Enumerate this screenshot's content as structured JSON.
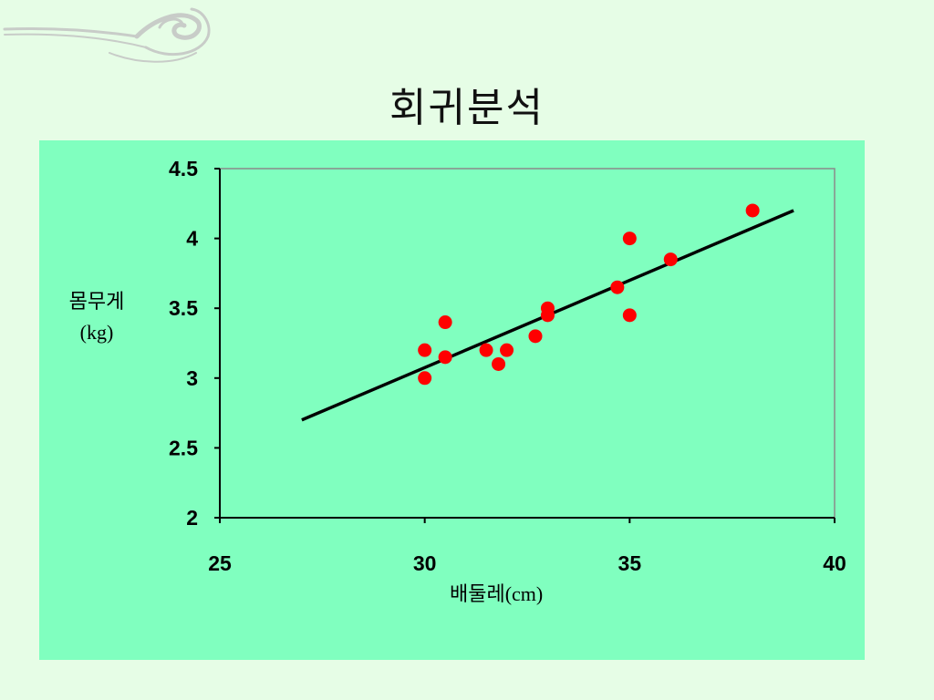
{
  "slide": {
    "title": "회귀분석"
  },
  "chart_data": {
    "type": "scatter",
    "xlabel": "배둘레(cm)",
    "ylabel": [
      "몸무게",
      "(kg)"
    ],
    "xlim": [
      25,
      40
    ],
    "ylim": [
      2,
      4.5
    ],
    "xticks": [
      "25",
      "30",
      "35",
      "40"
    ],
    "yticks": [
      "2",
      "2.5",
      "3",
      "3.5",
      "4",
      "4.5"
    ],
    "grid": false,
    "points": [
      {
        "x": 30.0,
        "y": 3.2
      },
      {
        "x": 30.0,
        "y": 3.0
      },
      {
        "x": 30.5,
        "y": 3.4
      },
      {
        "x": 30.5,
        "y": 3.15
      },
      {
        "x": 31.5,
        "y": 3.2
      },
      {
        "x": 31.8,
        "y": 3.1
      },
      {
        "x": 32.0,
        "y": 3.2
      },
      {
        "x": 32.7,
        "y": 3.3
      },
      {
        "x": 33.0,
        "y": 3.5
      },
      {
        "x": 33.0,
        "y": 3.45
      },
      {
        "x": 34.7,
        "y": 3.65
      },
      {
        "x": 35.0,
        "y": 4.0
      },
      {
        "x": 35.0,
        "y": 3.45
      },
      {
        "x": 36.0,
        "y": 3.85
      },
      {
        "x": 38.0,
        "y": 4.2
      }
    ],
    "regression_line": {
      "x": [
        27,
        39
      ],
      "y": [
        2.7,
        4.2
      ]
    },
    "colors": {
      "point": "#ff0000",
      "line": "#000000",
      "background": "#80ffbf"
    }
  }
}
